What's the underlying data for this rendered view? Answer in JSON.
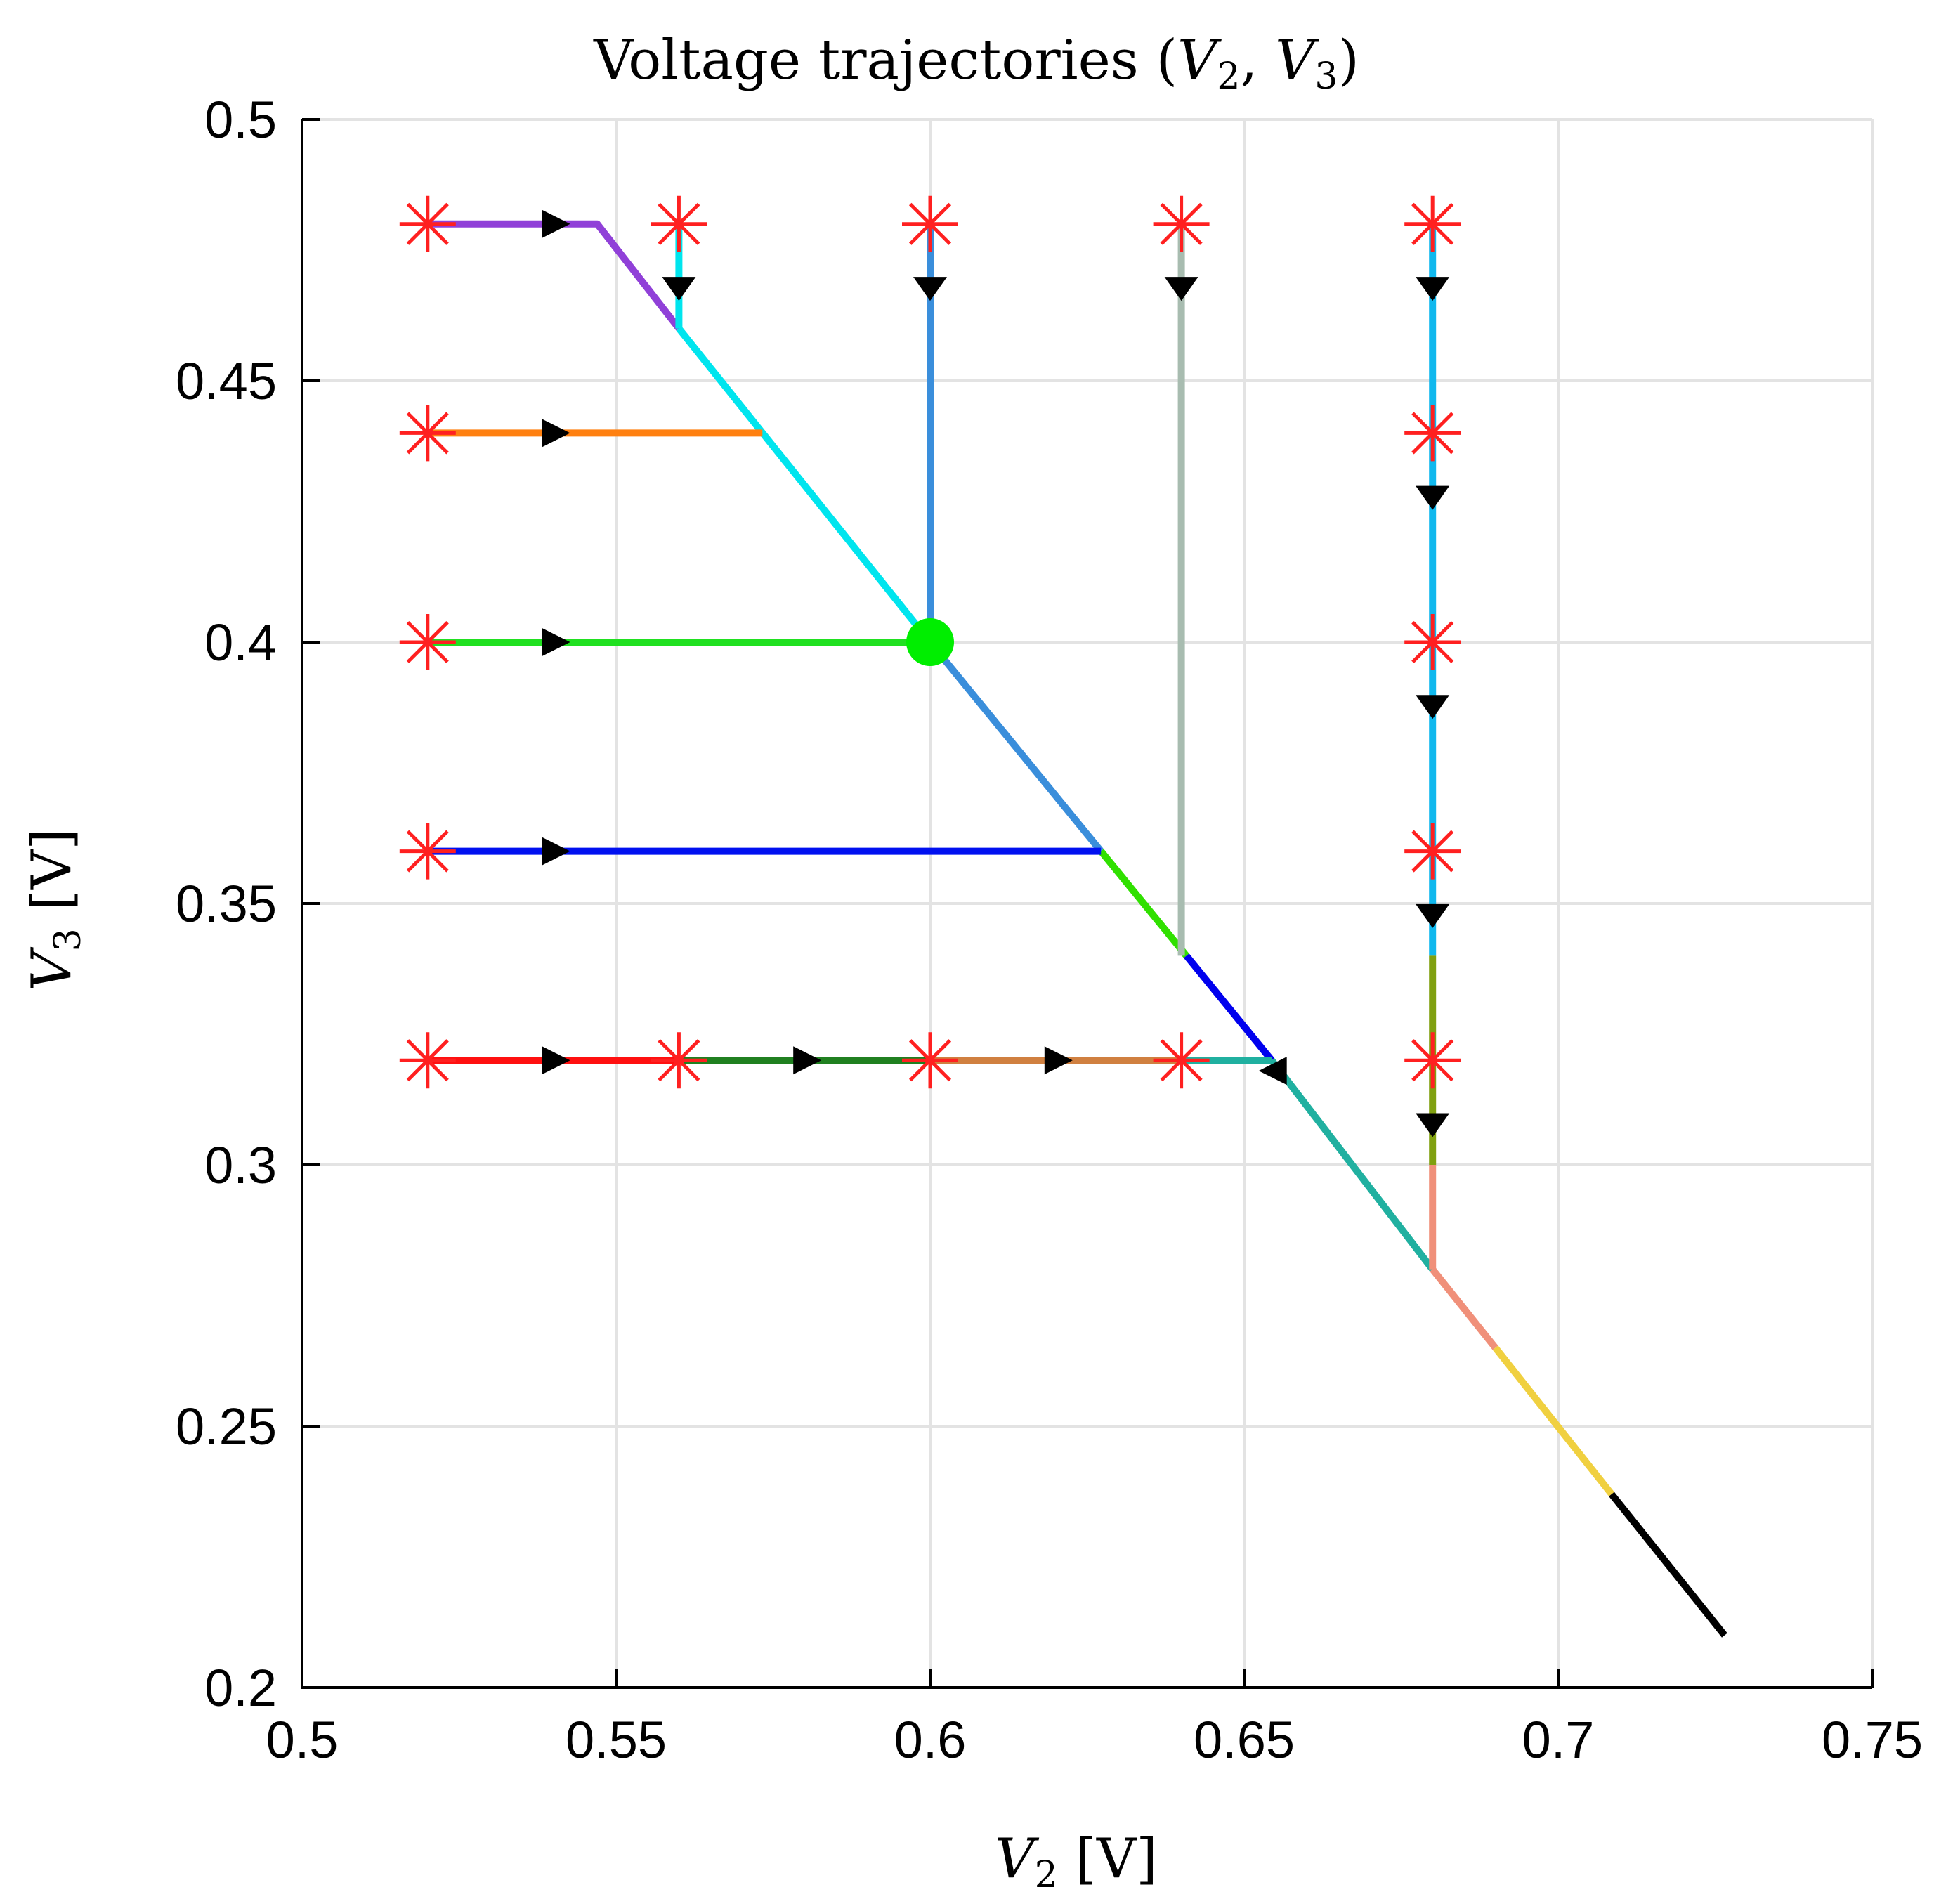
{
  "chart_data": {
    "type": "line",
    "title": "Voltage trajectories (V2, V3)",
    "title_parts": {
      "prefix": "Voltage trajectories (",
      "v": "V",
      "sub2": "2",
      "sep": ", ",
      "sub3": "3",
      "suffix": ")"
    },
    "xlabel": "V2 [V]",
    "xlabel_parts": {
      "v": "V",
      "sub": "2",
      "unit": " [V]"
    },
    "ylabel": "V3 [V]",
    "ylabel_parts": {
      "v": "V",
      "sub": "3",
      "unit": " [V]"
    },
    "xlim": [
      0.5,
      0.75
    ],
    "ylim": [
      0.2,
      0.5
    ],
    "xticks": [
      0.5,
      0.55,
      0.6,
      0.65,
      0.7,
      0.75
    ],
    "xtick_labels": [
      "0.5",
      "0.55",
      "0.6",
      "0.65",
      "0.7",
      "0.75"
    ],
    "yticks": [
      0.2,
      0.25,
      0.3,
      0.35,
      0.4,
      0.45,
      0.5
    ],
    "ytick_labels": [
      "0.2",
      "0.25",
      "0.3",
      "0.35",
      "0.4",
      "0.45",
      "0.5"
    ],
    "grid": true,
    "colors": {
      "start_marker": "#ff2020",
      "equilibrium": "#00ee00",
      "arrow": "#000000",
      "grid": "#e3e3e3"
    },
    "segments": [
      {
        "name": "diagonal-upper",
        "color": "#00e5ee",
        "points": [
          [
            0.56,
            0.46
          ],
          [
            0.6,
            0.4
          ]
        ]
      },
      {
        "name": "diagonal-mid",
        "color": "#3a8edb",
        "points": [
          [
            0.6,
            0.4
          ],
          [
            0.6272,
            0.36
          ]
        ]
      },
      {
        "name": "diagonal-green",
        "color": "#30e000",
        "points": [
          [
            0.6272,
            0.36
          ],
          [
            0.6408,
            0.34
          ]
        ]
      },
      {
        "name": "diagonal-blue",
        "color": "#0000ee",
        "points": [
          [
            0.6408,
            0.34
          ],
          [
            0.6544,
            0.32
          ]
        ]
      },
      {
        "name": "diagonal-teal",
        "color": "#20b0a0",
        "points": [
          [
            0.6544,
            0.32
          ],
          [
            0.68,
            0.28
          ]
        ]
      },
      {
        "name": "diagonal-salmon",
        "color": "#f0907a",
        "points": [
          [
            0.68,
            0.28
          ],
          [
            0.69,
            0.265
          ]
        ]
      },
      {
        "name": "diagonal-yellow",
        "color": "#f0d040",
        "points": [
          [
            0.69,
            0.265
          ],
          [
            0.7085,
            0.237
          ]
        ]
      },
      {
        "name": "diagonal-black",
        "color": "#000000",
        "points": [
          [
            0.7085,
            0.237
          ],
          [
            0.7265,
            0.21
          ]
        ]
      },
      {
        "name": "traj-purple",
        "color": "#9040d8",
        "points": [
          [
            0.52,
            0.48
          ],
          [
            0.547,
            0.48
          ],
          [
            0.56,
            0.46
          ]
        ]
      },
      {
        "name": "traj-cyan-short",
        "color": "#00e5ee",
        "points": [
          [
            0.56,
            0.48
          ],
          [
            0.56,
            0.46
          ]
        ]
      },
      {
        "name": "traj-orange",
        "color": "#ff8010",
        "points": [
          [
            0.52,
            0.44
          ],
          [
            0.5733,
            0.44
          ]
        ]
      },
      {
        "name": "traj-green",
        "color": "#20e020",
        "points": [
          [
            0.52,
            0.4
          ],
          [
            0.6,
            0.4
          ]
        ]
      },
      {
        "name": "traj-blue",
        "color": "#0010f0",
        "points": [
          [
            0.52,
            0.36
          ],
          [
            0.6272,
            0.36
          ]
        ]
      },
      {
        "name": "traj-steelblue",
        "color": "#3a8edb",
        "points": [
          [
            0.6,
            0.48
          ],
          [
            0.6,
            0.4
          ]
        ]
      },
      {
        "name": "traj-gray",
        "color": "#a8bcb0",
        "points": [
          [
            0.64,
            0.48
          ],
          [
            0.64,
            0.34
          ]
        ]
      },
      {
        "name": "traj-red",
        "color": "#ff1010",
        "points": [
          [
            0.52,
            0.32
          ],
          [
            0.56,
            0.32
          ]
        ]
      },
      {
        "name": "traj-darkgreen",
        "color": "#208020",
        "points": [
          [
            0.56,
            0.32
          ],
          [
            0.6,
            0.32
          ]
        ]
      },
      {
        "name": "traj-brown",
        "color": "#d08040",
        "points": [
          [
            0.6,
            0.32
          ],
          [
            0.64,
            0.32
          ]
        ]
      },
      {
        "name": "traj-teal-h",
        "color": "#20b0a0",
        "points": [
          [
            0.64,
            0.32
          ],
          [
            0.6544,
            0.32
          ]
        ]
      },
      {
        "name": "traj-skyblue",
        "color": "#10b8ee",
        "points": [
          [
            0.68,
            0.48
          ],
          [
            0.68,
            0.34
          ]
        ]
      },
      {
        "name": "traj-olive",
        "color": "#80a010",
        "points": [
          [
            0.68,
            0.34
          ],
          [
            0.68,
            0.3
          ]
        ]
      },
      {
        "name": "traj-salmon-v",
        "color": "#f0907a",
        "points": [
          [
            0.68,
            0.3
          ],
          [
            0.68,
            0.28
          ]
        ]
      }
    ],
    "start_points": [
      [
        0.52,
        0.48
      ],
      [
        0.56,
        0.48
      ],
      [
        0.6,
        0.48
      ],
      [
        0.64,
        0.48
      ],
      [
        0.68,
        0.48
      ],
      [
        0.52,
        0.44
      ],
      [
        0.68,
        0.44
      ],
      [
        0.52,
        0.4
      ],
      [
        0.68,
        0.4
      ],
      [
        0.52,
        0.36
      ],
      [
        0.68,
        0.36
      ],
      [
        0.52,
        0.32
      ],
      [
        0.56,
        0.32
      ],
      [
        0.6,
        0.32
      ],
      [
        0.64,
        0.32
      ],
      [
        0.68,
        0.32
      ]
    ],
    "arrows": [
      {
        "at": [
          0.54,
          0.48
        ],
        "dir": "right"
      },
      {
        "at": [
          0.54,
          0.44
        ],
        "dir": "right"
      },
      {
        "at": [
          0.54,
          0.4
        ],
        "dir": "right"
      },
      {
        "at": [
          0.54,
          0.36
        ],
        "dir": "right"
      },
      {
        "at": [
          0.54,
          0.32
        ],
        "dir": "right"
      },
      {
        "at": [
          0.58,
          0.32
        ],
        "dir": "right"
      },
      {
        "at": [
          0.62,
          0.32
        ],
        "dir": "right"
      },
      {
        "at": [
          0.655,
          0.318
        ],
        "dir": "left"
      },
      {
        "at": [
          0.56,
          0.468
        ],
        "dir": "down"
      },
      {
        "at": [
          0.6,
          0.468
        ],
        "dir": "down"
      },
      {
        "at": [
          0.64,
          0.468
        ],
        "dir": "down"
      },
      {
        "at": [
          0.68,
          0.468
        ],
        "dir": "down"
      },
      {
        "at": [
          0.68,
          0.428
        ],
        "dir": "down"
      },
      {
        "at": [
          0.68,
          0.388
        ],
        "dir": "down"
      },
      {
        "at": [
          0.68,
          0.348
        ],
        "dir": "down"
      },
      {
        "at": [
          0.68,
          0.308
        ],
        "dir": "down"
      }
    ],
    "equilibrium": [
      0.6,
      0.4
    ]
  }
}
